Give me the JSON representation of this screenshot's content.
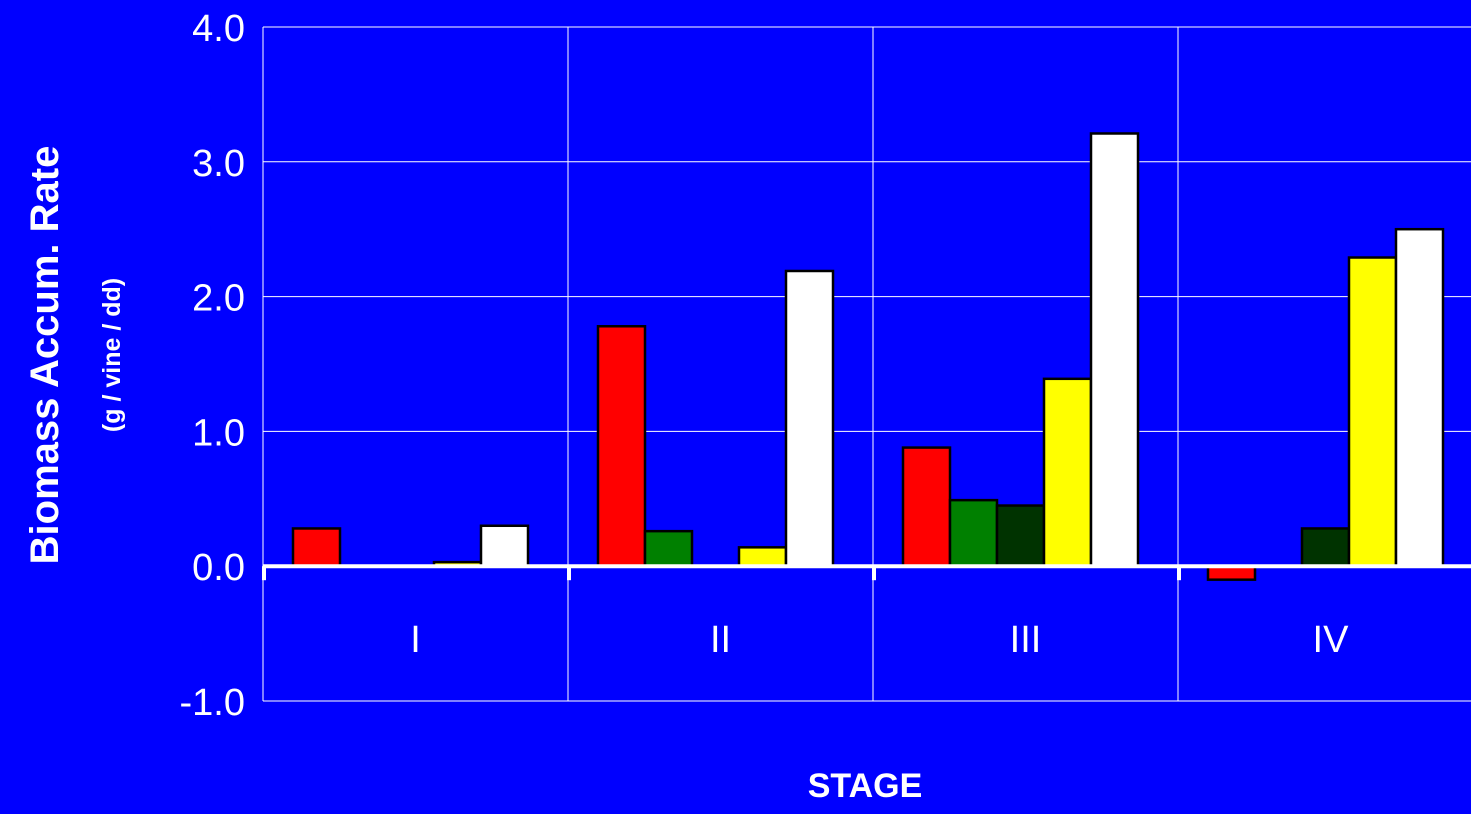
{
  "chart_data": {
    "type": "bar",
    "title": "",
    "xlabel": "STAGE",
    "ylabel": "Biomass Accum. Rate",
    "ylabel_sub": "(g / vine / dd)",
    "categories": [
      "I",
      "II",
      "III",
      "IV"
    ],
    "ylim": [
      -1.0,
      4.0
    ],
    "yticks": [
      "4.0",
      "3.0",
      "2.0",
      "1.0",
      "0.0",
      "-1.0"
    ],
    "grid": true,
    "legend": "none",
    "series": [
      {
        "color": "#ff0000",
        "values": [
          0.28,
          1.78,
          0.88,
          -0.1
        ]
      },
      {
        "color": "#008000",
        "values": [
          0.0,
          0.26,
          0.49,
          0.0
        ]
      },
      {
        "color": "#003300",
        "values": [
          0.0,
          0.0,
          0.45,
          0.28
        ]
      },
      {
        "color": "#ffff00",
        "values": [
          0.03,
          0.14,
          1.39,
          2.29
        ]
      },
      {
        "color": "#ffffff",
        "values": [
          0.3,
          2.19,
          3.21,
          2.5
        ]
      }
    ]
  },
  "style": {
    "background": "#0000ff",
    "text_color": "#ffffff",
    "bar_outline": "#000000"
  }
}
